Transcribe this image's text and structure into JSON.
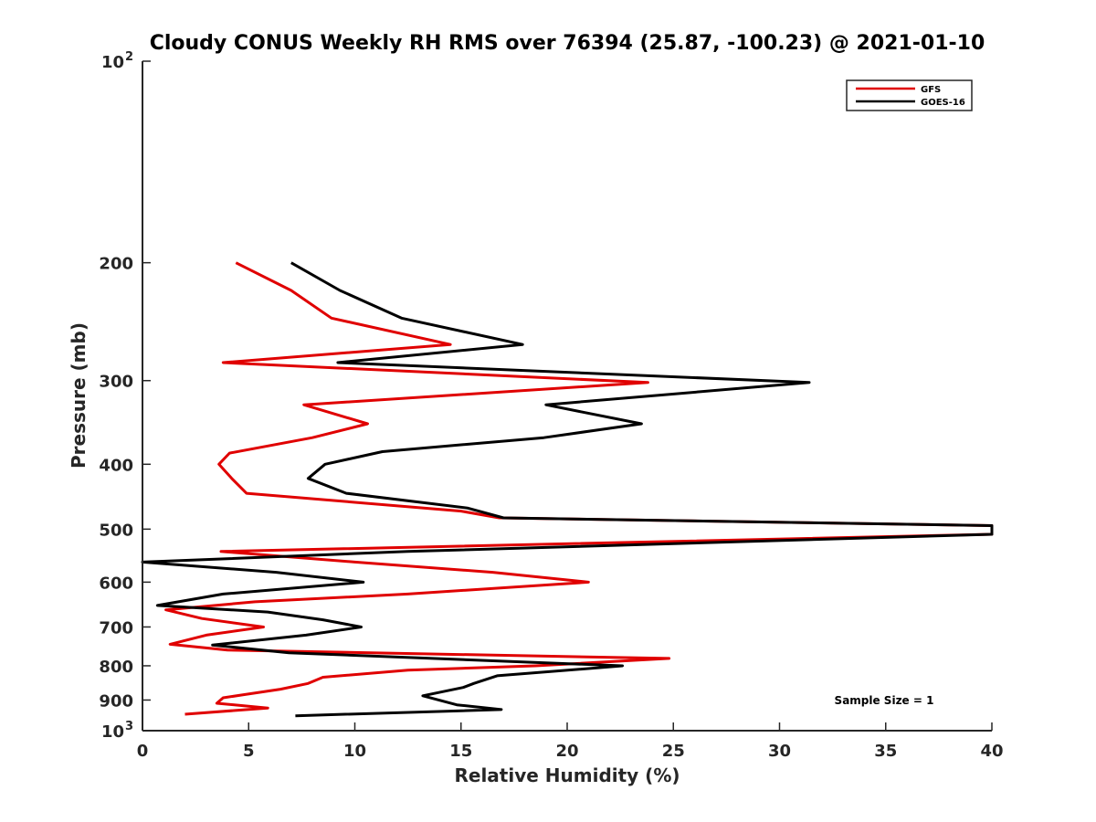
{
  "chart_data": {
    "type": "line",
    "title": "Cloudy CONUS Weekly RH RMS over 76394 (25.87, -100.23) @ 2021-01-10",
    "xlabel": "Relative Humidity (%)",
    "ylabel": "Pressure (mb)",
    "xlim": [
      0,
      40
    ],
    "ylim": [
      100,
      1000
    ],
    "y_scale": "log",
    "y_reversed": true,
    "x_ticks": [
      0,
      5,
      10,
      15,
      20,
      25,
      30,
      35,
      40
    ],
    "y_ticks": [
      {
        "value": 100,
        "label": "10",
        "exp": "2"
      },
      {
        "value": 200,
        "label": "200"
      },
      {
        "value": 300,
        "label": "300"
      },
      {
        "value": 400,
        "label": "400"
      },
      {
        "value": 500,
        "label": "500"
      },
      {
        "value": 600,
        "label": "600"
      },
      {
        "value": 700,
        "label": "700"
      },
      {
        "value": 800,
        "label": "800"
      },
      {
        "value": 900,
        "label": "900"
      },
      {
        "value": 1000,
        "label": "10",
        "exp": "3"
      }
    ],
    "grid": false,
    "legend_position": "top-right",
    "annotation": "Sample Size = 1",
    "series": [
      {
        "name": "GFS",
        "color": "#e00000",
        "points": [
          [
            4.4,
            200
          ],
          [
            7.0,
            220
          ],
          [
            8.9,
            242
          ],
          [
            14.5,
            265
          ],
          [
            3.8,
            282
          ],
          [
            23.8,
            302
          ],
          [
            7.6,
            326
          ],
          [
            10.6,
            348
          ],
          [
            8.0,
            365
          ],
          [
            4.1,
            385
          ],
          [
            3.6,
            400
          ],
          [
            4.2,
            420
          ],
          [
            4.9,
            442
          ],
          [
            15.0,
            470
          ],
          [
            16.8,
            481
          ],
          [
            40.0,
            494
          ],
          [
            40.0,
            509
          ],
          [
            3.7,
            540
          ],
          [
            10.0,
            560
          ],
          [
            16.5,
            580
          ],
          [
            21.0,
            600
          ],
          [
            12.5,
            625
          ],
          [
            5.3,
            642
          ],
          [
            1.1,
            660
          ],
          [
            2.8,
            680
          ],
          [
            5.7,
            700
          ],
          [
            3.0,
            720
          ],
          [
            1.3,
            743
          ],
          [
            4.0,
            758
          ],
          [
            24.8,
            780
          ],
          [
            18.5,
            800
          ],
          [
            12.5,
            812
          ],
          [
            8.5,
            832
          ],
          [
            7.8,
            850
          ],
          [
            6.5,
            867
          ],
          [
            3.8,
            893
          ],
          [
            3.5,
            910
          ],
          [
            5.9,
            925
          ],
          [
            2.0,
            945
          ]
        ]
      },
      {
        "name": "GOES-16",
        "color": "#000000",
        "points": [
          [
            7.0,
            200
          ],
          [
            9.3,
            220
          ],
          [
            12.2,
            242
          ],
          [
            17.9,
            265
          ],
          [
            9.2,
            282
          ],
          [
            31.4,
            302
          ],
          [
            19.0,
            326
          ],
          [
            23.5,
            348
          ],
          [
            18.9,
            365
          ],
          [
            11.3,
            383
          ],
          [
            8.6,
            400
          ],
          [
            7.8,
            420
          ],
          [
            9.6,
            442
          ],
          [
            15.3,
            465
          ],
          [
            17.0,
            481
          ],
          [
            40.0,
            494
          ],
          [
            40.0,
            509
          ],
          [
            12.5,
            540
          ],
          [
            0.0,
            560
          ],
          [
            6.3,
            580
          ],
          [
            10.4,
            600
          ],
          [
            3.8,
            625
          ],
          [
            0.7,
            650
          ],
          [
            5.9,
            665
          ],
          [
            8.5,
            683
          ],
          [
            10.3,
            700
          ],
          [
            7.7,
            720
          ],
          [
            3.3,
            745
          ],
          [
            6.9,
            765
          ],
          [
            22.6,
            800
          ],
          [
            16.7,
            828
          ],
          [
            15.6,
            850
          ],
          [
            15.1,
            862
          ],
          [
            13.2,
            887
          ],
          [
            14.8,
            915
          ],
          [
            16.9,
            930
          ],
          [
            7.2,
            950
          ]
        ]
      }
    ]
  }
}
